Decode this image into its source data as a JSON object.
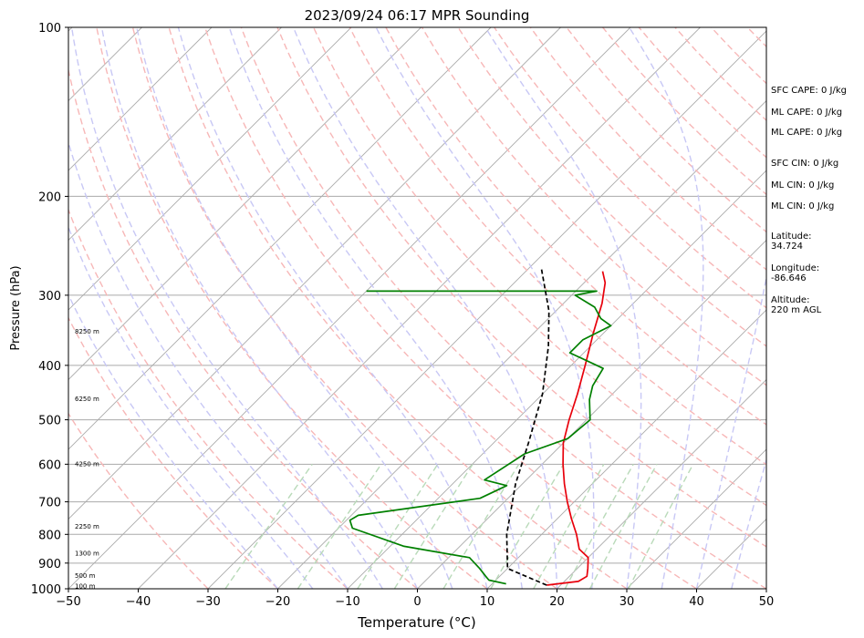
{
  "chart_data": {
    "type": "line",
    "title": "2023/09/24 06:17 MPR Sounding",
    "xlabel": "Temperature (°C)",
    "ylabel": "Pressure (hPa)",
    "xlim": [
      -50,
      50
    ],
    "ylim": [
      1000,
      100
    ],
    "y_scale": "log",
    "skew": true,
    "grid": true,
    "x_ticks": [
      -50,
      -40,
      -30,
      -20,
      -10,
      0,
      10,
      20,
      30,
      40,
      50
    ],
    "x_tick_labels": [
      "−50",
      "−40",
      "−30",
      "−20",
      "−10",
      "0",
      "10",
      "20",
      "30",
      "40",
      "50"
    ],
    "y_ticks": [
      1000,
      900,
      800,
      700,
      600,
      500,
      400,
      300,
      200,
      100
    ],
    "y_tick_labels": [
      "1000",
      "900",
      "800",
      "700",
      "600",
      "500",
      "400",
      "300",
      "200",
      "100"
    ],
    "series": [
      {
        "color": "#e8000b",
        "points": [
          [
            18,
            985
          ],
          [
            22,
            970
          ],
          [
            22.5,
            950
          ],
          [
            21.5,
            920
          ],
          [
            20,
            880
          ],
          [
            17.5,
            850
          ],
          [
            15,
            800
          ],
          [
            12,
            750
          ],
          [
            9,
            700
          ],
          [
            6,
            650
          ],
          [
            3,
            600
          ],
          [
            0,
            550
          ],
          [
            -2.5,
            500
          ],
          [
            -5,
            450
          ],
          [
            -8,
            400
          ],
          [
            -11.5,
            350
          ],
          [
            -14.5,
            310
          ],
          [
            -17,
            285
          ],
          [
            -19,
            272
          ]
        ]
      },
      {
        "color": "#008000",
        "points": [
          [
            12,
            980
          ],
          [
            9,
            965
          ],
          [
            8,
            950
          ],
          [
            6,
            920
          ],
          [
            3,
            880
          ],
          [
            -8,
            840
          ],
          [
            -18,
            780
          ],
          [
            -19.5,
            755
          ],
          [
            -19,
            740
          ],
          [
            -4,
            690
          ],
          [
            -2,
            655
          ],
          [
            -6,
            640
          ],
          [
            -4,
            575
          ],
          [
            0,
            540
          ],
          [
            0.5,
            500
          ],
          [
            -2.5,
            460
          ],
          [
            -4,
            435
          ],
          [
            -5,
            405
          ],
          [
            -12,
            380
          ],
          [
            -12,
            360
          ],
          [
            -10,
            340
          ],
          [
            -12.5,
            330
          ],
          [
            -15,
            315
          ],
          [
            -19.5,
            300
          ],
          [
            -17,
            295
          ],
          [
            -50,
            295
          ]
        ]
      },
      {
        "color": "#000000",
        "dashed": true,
        "points": [
          [
            18,
            985
          ],
          [
            10,
            920
          ],
          [
            5,
            800
          ],
          [
            -1,
            650
          ],
          [
            -5,
            550
          ],
          [
            -10,
            450
          ],
          [
            -16,
            370
          ],
          [
            -21,
            320
          ],
          [
            -28,
            270
          ]
        ]
      }
    ],
    "height_labels": [
      {
        "text": "100 m",
        "p": 987
      },
      {
        "text": "500 m",
        "p": 945
      },
      {
        "text": "1300 m",
        "p": 862
      },
      {
        "text": "2250 m",
        "p": 772
      },
      {
        "text": "4250 m",
        "p": 598
      },
      {
        "text": "6250 m",
        "p": 458
      },
      {
        "text": "8250 m",
        "p": 347
      }
    ],
    "background_lines": {
      "isotherm_color": "#aaaaaa",
      "dry_adiabat_color": "#f7b7b7",
      "moist_adiabat_color": "#c8c8f5",
      "mixing_ratio_color": "#b9dab9"
    }
  },
  "info": {
    "sfc_cape": "SFC CAPE: 0 J/kg",
    "ml_cape_1": "ML CAPE: 0 J/kg",
    "ml_cape_2": "ML CAPE: 0 J/kg",
    "sfc_cin": "SFC CIN: 0 J/kg",
    "ml_cin_1": "ML CIN: 0 J/kg",
    "ml_cin_2": "ML CIN: 0 J/kg",
    "latitude_label": "Latitude:",
    "latitude_value": "34.724",
    "longitude_label": "Longitude:",
    "longitude_value": "-86.646",
    "altitude_label": "Altitude:",
    "altitude_value": "220 m AGL"
  }
}
